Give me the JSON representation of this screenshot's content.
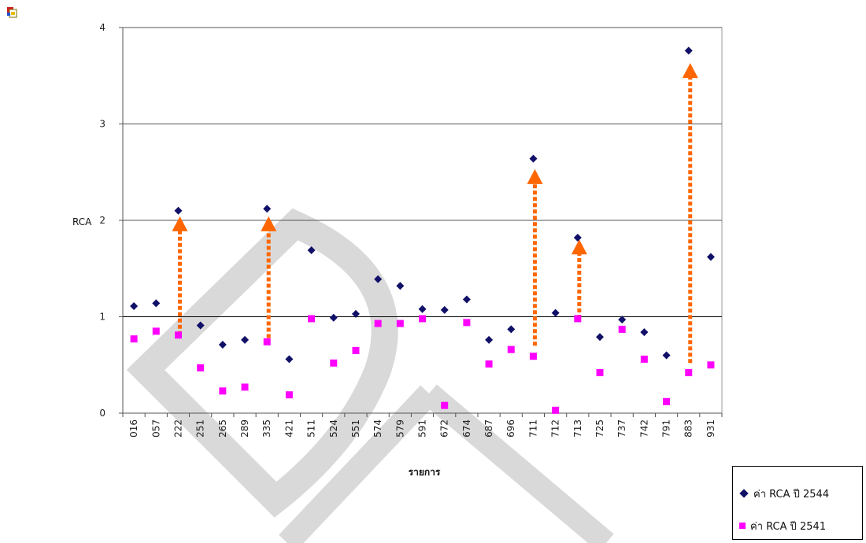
{
  "chart_data": {
    "type": "scatter",
    "ylabel": "RCA",
    "xlabel": "รายการ",
    "ylim": [
      0,
      4
    ],
    "yticks": [
      "0",
      "1",
      "2",
      "3",
      "4"
    ],
    "grid": true,
    "legend_position": "bottom-right",
    "categories": [
      "016",
      "057",
      "222",
      "251",
      "265",
      "289",
      "335",
      "421",
      "511",
      "524",
      "551",
      "574",
      "579",
      "591",
      "672",
      "674",
      "687",
      "696",
      "711",
      "712",
      "713",
      "725",
      "737",
      "742",
      "791",
      "883",
      "931"
    ],
    "series": [
      {
        "name": "ค่า RCA ปี 2544",
        "marker": "diamond",
        "color": "#101068",
        "values": [
          1.11,
          1.14,
          2.1,
          0.91,
          0.71,
          0.76,
          2.12,
          0.56,
          1.69,
          0.99,
          1.03,
          1.39,
          1.32,
          1.08,
          1.07,
          1.18,
          0.76,
          0.87,
          2.64,
          1.04,
          1.82,
          0.79,
          0.97,
          0.84,
          0.6,
          3.76,
          1.62
        ]
      },
      {
        "name": "ค่า RCA ปี 2541",
        "marker": "square",
        "color": "#ff00ff",
        "values": [
          0.77,
          0.85,
          0.81,
          0.47,
          0.23,
          0.27,
          0.74,
          0.19,
          0.98,
          0.52,
          0.65,
          0.93,
          0.93,
          0.98,
          0.08,
          0.94,
          0.51,
          0.66,
          0.59,
          0.03,
          0.98,
          0.42,
          0.87,
          0.56,
          0.12,
          0.42,
          0.5
        ]
      }
    ],
    "arrows": [
      {
        "category": "222",
        "from": 0.81,
        "to": 1.96
      },
      {
        "category": "335",
        "from": 0.78,
        "to": 1.96
      },
      {
        "category": "711",
        "from": 0.7,
        "to": 2.45
      },
      {
        "category": "713",
        "from": 0.98,
        "to": 1.72
      },
      {
        "category": "883",
        "from": 0.52,
        "to": 3.55
      }
    ],
    "arrow_color": "#ff6600"
  },
  "watermark": "DPU"
}
